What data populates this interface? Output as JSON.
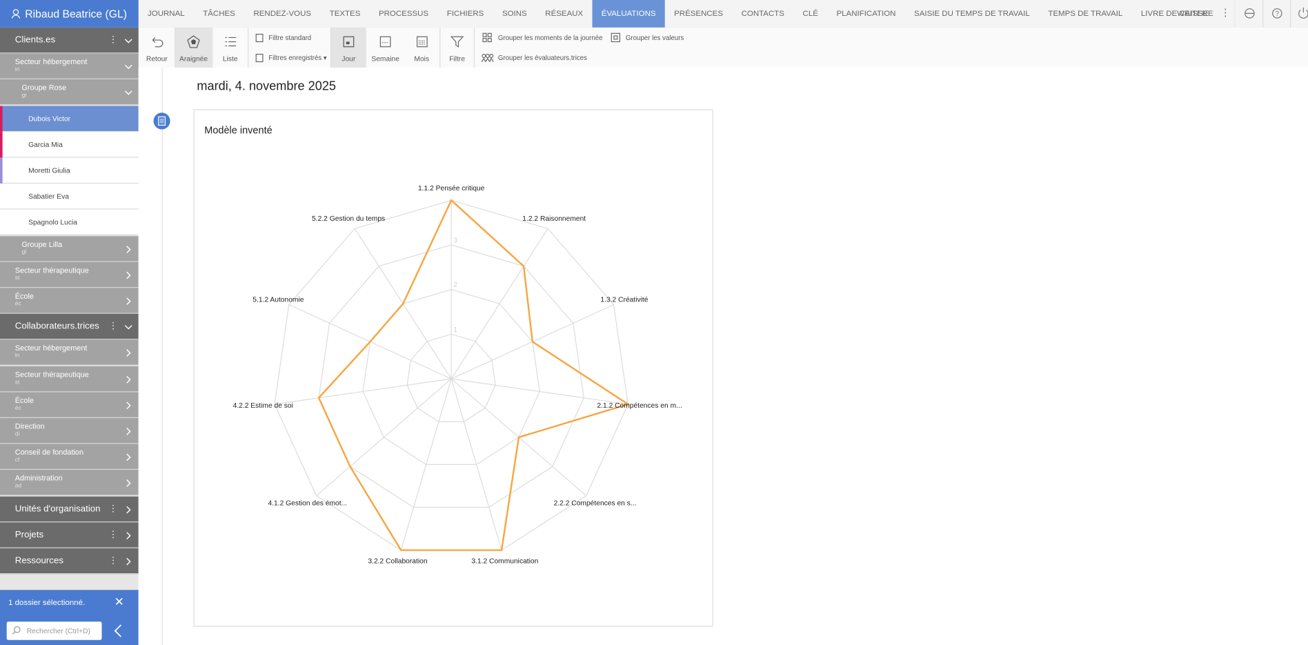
{
  "user": "Ribaud Beatrice (GL)",
  "nav": [
    "JOURNAL",
    "TÂCHES",
    "RENDEZ-VOUS",
    "TEXTES",
    "PROCESSUS",
    "FICHIERS",
    "SOINS",
    "RÉSEAUX",
    "ÉVALUATIONS",
    "PRÉSENCES",
    "CONTACTS",
    "CLÉ",
    "PLANIFICATION",
    "SAISIE DU TEMPS DE TRAVAIL",
    "TEMPS DE TRAVAIL",
    "LIVRE DE CAISSE"
  ],
  "nav_active": 8,
  "more": "WEITERE",
  "toolbar": {
    "back": "Retour",
    "views": [
      "Araignée",
      "Liste"
    ],
    "filters": [
      "Filtre standard",
      "Filtres enregistrés"
    ],
    "periods": [
      "Jour",
      "Semaine",
      "Mois"
    ],
    "filter": "Filtre",
    "group": [
      "Grouper les moments de la journée",
      "Grouper les valeurs",
      "Grouper les évaluateurs.trices"
    ]
  },
  "sidebar": [
    {
      "label": "Clients.es"
    },
    {
      "label": "Secteur hébergement",
      "code": "in"
    },
    {
      "label": "Groupe Rose",
      "code": "gr"
    },
    {
      "label": "Dubois Victor"
    },
    {
      "label": "Garcia Mia"
    },
    {
      "label": "Moretti Giulia"
    },
    {
      "label": "Sabatier Eva"
    },
    {
      "label": "Spagnolo Lucia"
    },
    {
      "label": "Groupe Lilla",
      "code": "gl"
    },
    {
      "label": "Secteur thérapeutique",
      "code": "st"
    },
    {
      "label": "École",
      "code": "éc"
    },
    {
      "label": "Collaborateurs.trices"
    },
    {
      "label": "Secteur hébergement",
      "code": "in"
    },
    {
      "label": "Secteur thérapeutique",
      "code": "st"
    },
    {
      "label": "École",
      "code": "éc"
    },
    {
      "label": "Direction",
      "code": "di"
    },
    {
      "label": "Conseil de fondation",
      "code": "cf"
    },
    {
      "label": "Administration",
      "code": "ad"
    },
    {
      "label": "Unités d'organisation"
    },
    {
      "label": "Projets"
    },
    {
      "label": "Ressources"
    }
  ],
  "selection": "1 dossier sélectionné.",
  "search_placeholder": "Rechercher (Ctrl+D)",
  "date": "mardi, 4. novembre 2025",
  "chart_data": {
    "type": "radar",
    "title": "Modèle inventé",
    "categories": [
      "1.1.2 Pensée critique",
      "1.2.2 Raisonnement",
      "1.3.2 Créativité",
      "2.1.2 Compétences en m...",
      "2.2.2 Compétences en s...",
      "3.1.2 Communication",
      "3.2.2 Collaboration",
      "4.1.2 Gestion des émot...",
      "4.2.2 Estime de soi",
      "5.1.2 Autonomie",
      "5.2.2 Gestion du temps"
    ],
    "values": [
      4,
      3,
      2,
      4,
      2,
      4,
      4,
      3,
      3,
      2,
      2
    ],
    "color": "#f7a541",
    "rlim": [
      0,
      4
    ],
    "rticks": [
      1,
      2,
      3
    ]
  }
}
